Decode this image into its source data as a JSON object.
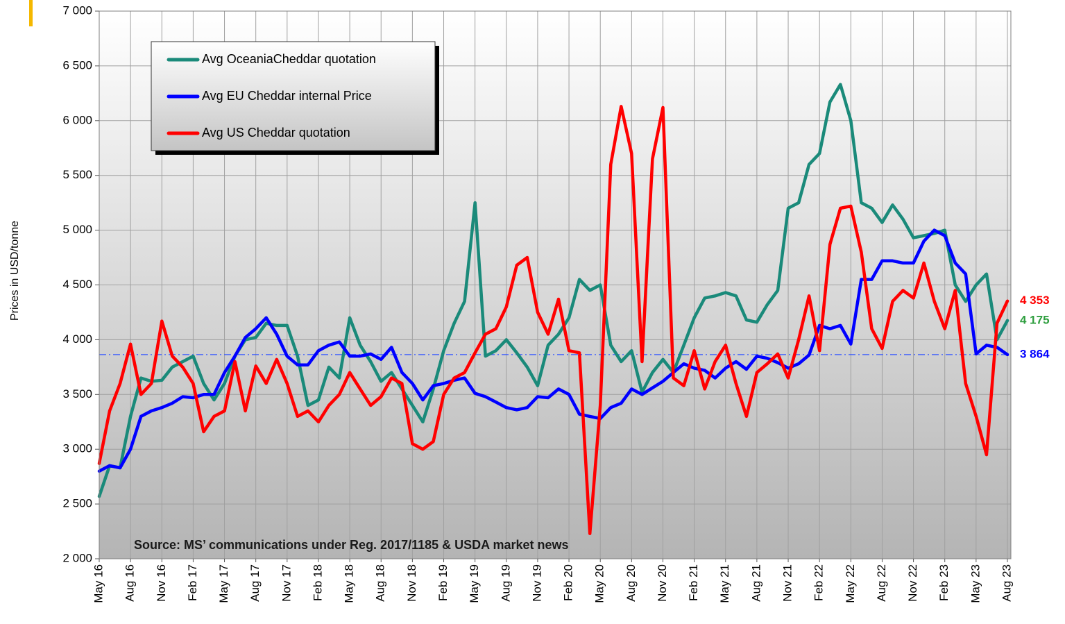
{
  "chart_data": {
    "type": "line",
    "y_label": "Prices in USD/tonne",
    "annotation": "Source: MS’ communications under Reg. 2017/1185  & USDA market news",
    "categories": [
      "May 16",
      null,
      null,
      "Aug 16",
      null,
      null,
      "Nov 16",
      null,
      null,
      "Feb 17",
      null,
      null,
      "May 17",
      null,
      null,
      "Aug 17",
      null,
      null,
      "Nov 17",
      null,
      null,
      "Feb 18",
      null,
      null,
      "May 18",
      null,
      null,
      "Aug 18",
      null,
      null,
      "Nov 18",
      null,
      null,
      "Feb 19",
      null,
      null,
      "May 19",
      null,
      null,
      "Aug 19",
      null,
      null,
      "Nov 19",
      null,
      null,
      "Feb 20",
      null,
      null,
      "May 20",
      null,
      null,
      "Aug 20",
      null,
      null,
      "Nov 20",
      null,
      null,
      "Feb 21",
      null,
      null,
      "May 21",
      null,
      null,
      "Aug 21",
      null,
      null,
      "Nov 21",
      null,
      null,
      "Feb 22",
      null,
      null,
      "May 22",
      null,
      null,
      "Aug 22",
      null,
      null,
      "Nov 22",
      null,
      null,
      "Feb 23",
      null,
      null,
      "May 23",
      null,
      null,
      "Aug 23"
    ],
    "series": [
      {
        "name": "Avg OceaniaCheddar quotation",
        "color": "#1a8a7a",
        "end_label": "4 175",
        "end_label_color": "#2e9e3e",
        "values": [
          2570,
          2850,
          2830,
          3300,
          3650,
          3620,
          3630,
          3750,
          3800,
          3850,
          3600,
          3450,
          3600,
          3850,
          4000,
          4020,
          4150,
          4130,
          4130,
          3850,
          3400,
          3450,
          3750,
          3650,
          4200,
          3950,
          3800,
          3620,
          3700,
          3550,
          3400,
          3250,
          3550,
          3900,
          4150,
          4350,
          5250,
          3850,
          3900,
          4000,
          3880,
          3750,
          3580,
          3950,
          4050,
          4200,
          4550,
          4450,
          4500,
          3950,
          3800,
          3900,
          3520,
          3700,
          3820,
          3700,
          3950,
          4200,
          4380,
          4400,
          4430,
          4400,
          4180,
          4160,
          4320,
          4450,
          5200,
          5250,
          5600,
          5700,
          6170,
          6330,
          6000,
          5250,
          5200,
          5070,
          5230,
          5100,
          4930,
          4950,
          4970,
          5000,
          4500,
          4350,
          4500,
          4600,
          4000,
          4175
        ]
      },
      {
        "name": "Avg EU Cheddar internal Price",
        "color": "#0000ff",
        "end_label": "3 864",
        "end_label_color": "#0000ff",
        "values": [
          2800,
          2850,
          2830,
          3000,
          3300,
          3350,
          3380,
          3420,
          3480,
          3470,
          3500,
          3500,
          3700,
          3850,
          4020,
          4100,
          4200,
          4050,
          3850,
          3770,
          3770,
          3900,
          3950,
          3980,
          3850,
          3850,
          3870,
          3820,
          3930,
          3700,
          3600,
          3450,
          3580,
          3600,
          3630,
          3650,
          3510,
          3480,
          3430,
          3380,
          3360,
          3380,
          3480,
          3470,
          3550,
          3500,
          3320,
          3300,
          3280,
          3380,
          3420,
          3550,
          3500,
          3560,
          3620,
          3700,
          3780,
          3740,
          3720,
          3650,
          3740,
          3800,
          3730,
          3850,
          3830,
          3790,
          3740,
          3780,
          3860,
          4130,
          4100,
          4130,
          3960,
          4550,
          4550,
          4720,
          4720,
          4700,
          4700,
          4900,
          5000,
          4950,
          4700,
          4600,
          3870,
          3950,
          3930,
          3864
        ]
      },
      {
        "name": "Avg US Cheddar quotation",
        "color": "#ff0000",
        "end_label": "4 353",
        "end_label_color": "#ff0000",
        "values": [
          2870,
          3350,
          3600,
          3960,
          3500,
          3600,
          4170,
          3850,
          3750,
          3600,
          3160,
          3300,
          3350,
          3800,
          3350,
          3760,
          3600,
          3820,
          3600,
          3300,
          3350,
          3250,
          3400,
          3500,
          3700,
          3550,
          3400,
          3480,
          3650,
          3600,
          3050,
          3000,
          3070,
          3500,
          3650,
          3700,
          3880,
          4050,
          4100,
          4300,
          4680,
          4750,
          4250,
          4050,
          4370,
          3900,
          3880,
          2230,
          3400,
          5600,
          6130,
          5700,
          3800,
          5650,
          6120,
          3650,
          3580,
          3900,
          3550,
          3800,
          3950,
          3600,
          3300,
          3700,
          3780,
          3870,
          3650,
          4000,
          4400,
          3900,
          4870,
          5200,
          5220,
          4800,
          4100,
          3920,
          4350,
          4450,
          4380,
          4700,
          4350,
          4100,
          4450,
          3600,
          3300,
          2950,
          4150,
          4353
        ]
      }
    ],
    "reference_line": {
      "value": 3864,
      "color": "#3355ff"
    },
    "ylim": [
      2000,
      7000
    ],
    "yticks": [
      {
        "value": 2000,
        "label": "2 000"
      },
      {
        "value": 2500,
        "label": "2 500"
      },
      {
        "value": 3000,
        "label": "3 000"
      },
      {
        "value": 3500,
        "label": "3 500"
      },
      {
        "value": 4000,
        "label": "4 000"
      },
      {
        "value": 4500,
        "label": "4 500"
      },
      {
        "value": 5000,
        "label": "5 000"
      },
      {
        "value": 5500,
        "label": "5 500"
      },
      {
        "value": 6000,
        "label": "6 000"
      },
      {
        "value": 6500,
        "label": "6 500"
      },
      {
        "value": 7000,
        "label": "7 000"
      }
    ],
    "grid": true,
    "legend": "top-left"
  }
}
